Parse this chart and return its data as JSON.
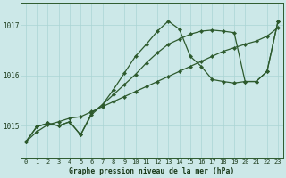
{
  "title": "Graphe pression niveau de la mer (hPa)",
  "bg_color": "#cce8e8",
  "grid_color": "#aad4d4",
  "line_color": "#2d5a2d",
  "x_labels": [
    "0",
    "1",
    "2",
    "3",
    "4",
    "5",
    "6",
    "7",
    "8",
    "9",
    "10",
    "11",
    "12",
    "13",
    "14",
    "15",
    "16",
    "17",
    "18",
    "19",
    "20",
    "21",
    "22",
    "23"
  ],
  "yticks": [
    1015,
    1016,
    1017
  ],
  "ylim": [
    1014.35,
    1017.45
  ],
  "series_peak": [
    1014.68,
    1014.98,
    1015.05,
    1015.0,
    1015.08,
    1014.82,
    1015.22,
    1015.42,
    1015.72,
    1016.05,
    1016.38,
    1016.62,
    1016.88,
    1017.08,
    1016.92,
    1016.38,
    1016.18,
    1015.92,
    1015.88,
    1015.85,
    1015.88,
    1015.88,
    1016.08,
    1017.08
  ],
  "series_mid": [
    1014.68,
    1014.98,
    1015.05,
    1015.0,
    1015.08,
    1014.82,
    1015.25,
    1015.42,
    1015.62,
    1015.82,
    1016.02,
    1016.25,
    1016.45,
    1016.62,
    1016.72,
    1016.82,
    1016.88,
    1016.9,
    1016.88,
    1016.85,
    1015.88,
    1015.88,
    1016.08,
    1017.08
  ],
  "series_linear": [
    1014.68,
    1014.88,
    1015.02,
    1015.08,
    1015.15,
    1015.18,
    1015.28,
    1015.38,
    1015.48,
    1015.58,
    1015.68,
    1015.78,
    1015.88,
    1015.98,
    1016.08,
    1016.18,
    1016.28,
    1016.38,
    1016.48,
    1016.55,
    1016.62,
    1016.68,
    1016.78,
    1016.95
  ]
}
